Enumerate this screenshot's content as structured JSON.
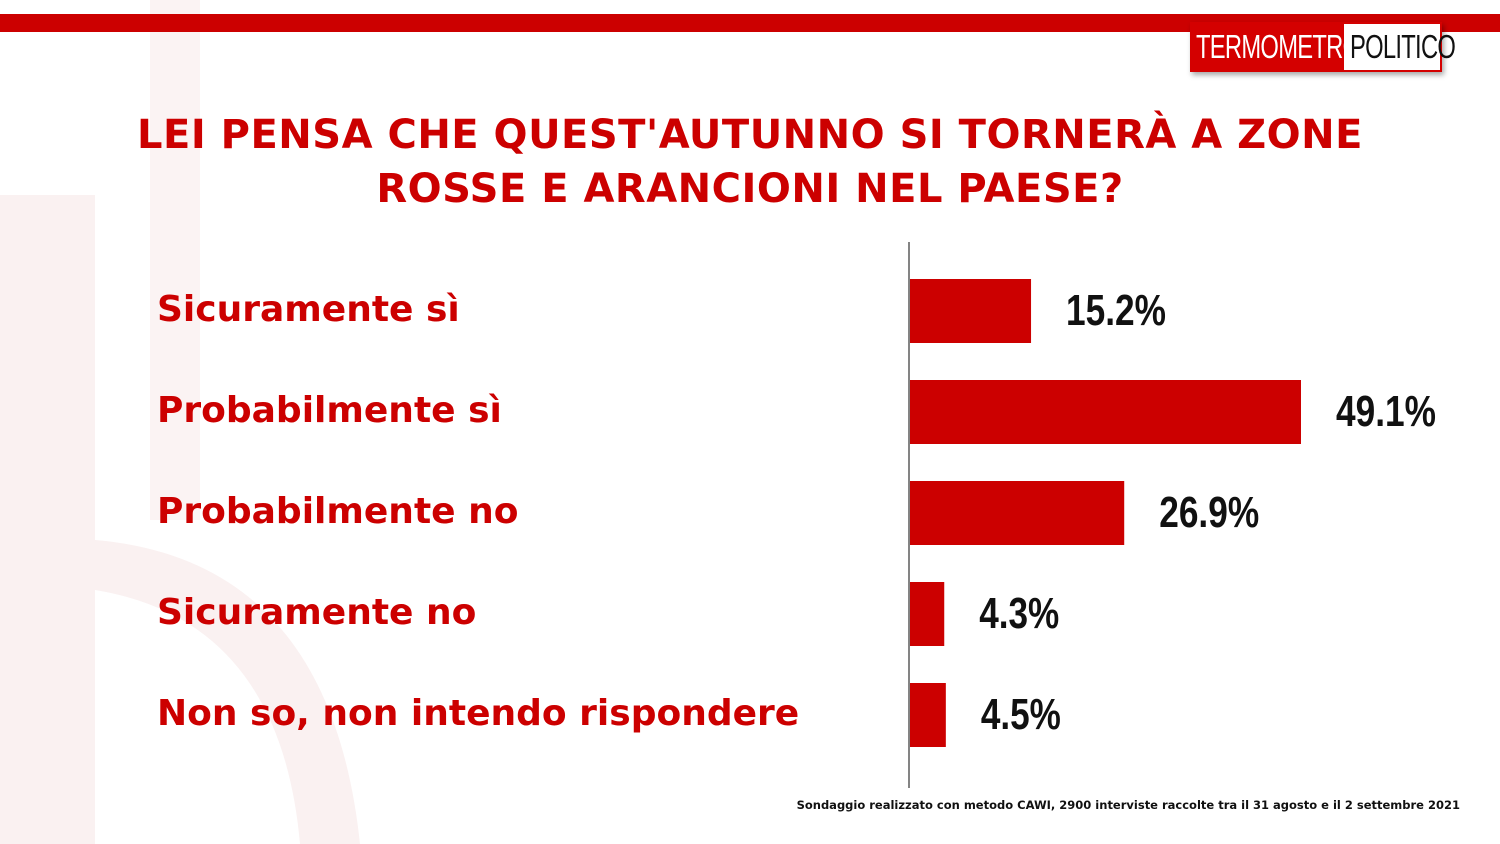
{
  "title_lines": [
    "LEI PENSA CHE QUEST'AUTUNNO SI TORNERÀ A ZONE",
    "ROSSE E ARANCIONI NEL PAESE?"
  ],
  "logo": {
    "part1": "TERMOMETRO",
    "part2": "POLITICO"
  },
  "footnote": "Sondaggio realizzato con metodo CAWI, 2900 interviste raccolte tra il 31 agosto  e il 2  settembre 2021",
  "colors": {
    "bar": "#cc0000",
    "title": "#cc0000",
    "label": "#cc0000",
    "value": "#111111"
  },
  "chart_data": {
    "type": "bar",
    "orientation": "horizontal",
    "categories": [
      "Sicuramente sì",
      "Probabilmente sì",
      "Probabilmente no",
      "Sicuramente no",
      "Non so, non intendo rispondere"
    ],
    "values": [
      15.2,
      49.1,
      26.9,
      4.3,
      4.5
    ],
    "value_labels": [
      "15.2%",
      "49.1%",
      "26.9%",
      "4.3%",
      "4.5%"
    ],
    "title": "LEI PENSA CHE QUEST'AUTUNNO SI TORNERÀ A ZONE ROSSE E ARANCIONI NEL PAESE?",
    "xlabel": "",
    "ylabel": "",
    "grid": false,
    "legend": "none"
  }
}
